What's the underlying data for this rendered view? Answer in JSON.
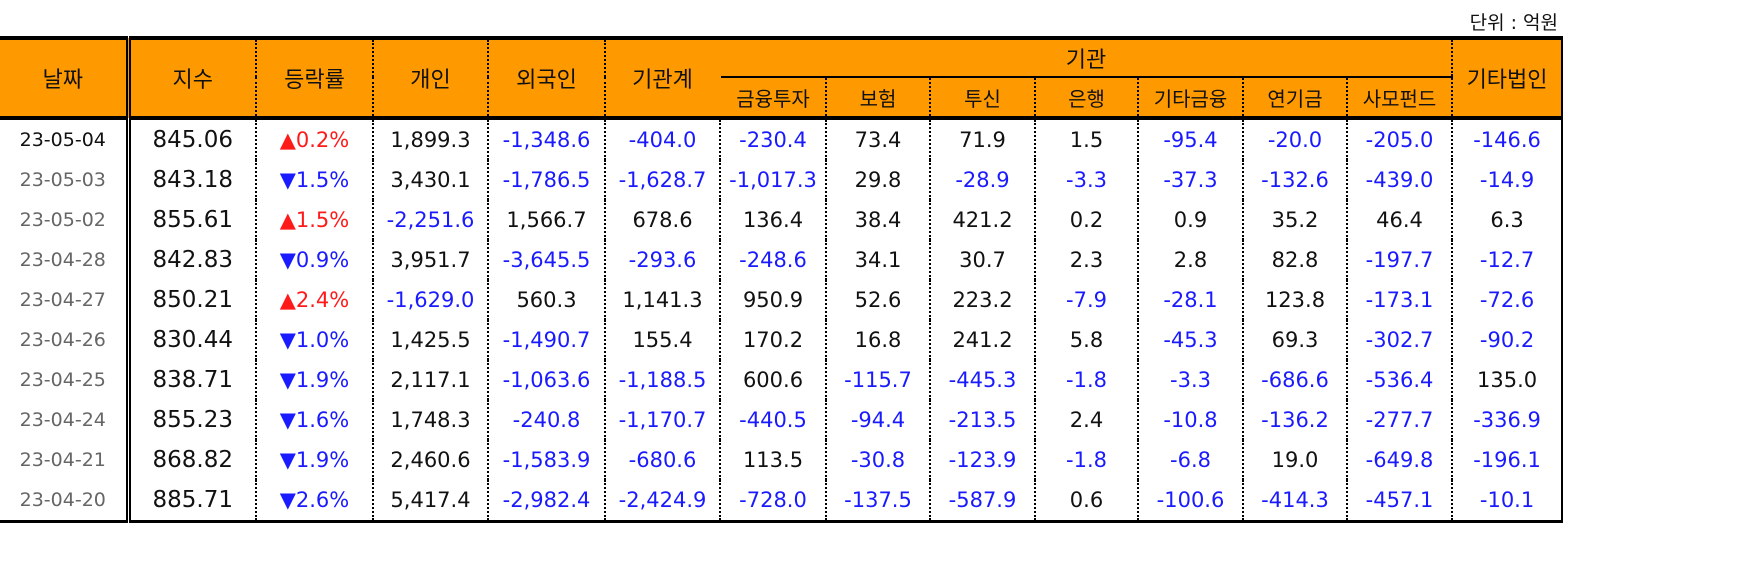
{
  "unit_label": "단위 : 억원",
  "colors": {
    "header_bg": "#ff9900",
    "negative": "#1a1aff",
    "up": "#ff1a1a",
    "down": "#1a1aff"
  },
  "headers": {
    "date": "날짜",
    "index": "지수",
    "rate": "등락률",
    "individual": "개인",
    "foreign": "외국인",
    "inst_total": "기관계",
    "institution": "기관",
    "other_corp": "기타법인",
    "inst_sub": [
      "금융투자",
      "보험",
      "투신",
      "은행",
      "기타금융",
      "연기금",
      "사모펀드"
    ]
  },
  "rows": [
    [
      "23-05-04",
      "845.06",
      "▲",
      "0.2%",
      "1,899.3",
      "-1,348.6",
      "-404.0",
      "-230.4",
      "73.4",
      "71.9",
      "1.5",
      "-95.4",
      "-20.0",
      "-205.0",
      "-146.6"
    ],
    [
      "23-05-03",
      "843.18",
      "▼",
      "1.5%",
      "3,430.1",
      "-1,786.5",
      "-1,628.7",
      "-1,017.3",
      "29.8",
      "-28.9",
      "-3.3",
      "-37.3",
      "-132.6",
      "-439.0",
      "-14.9"
    ],
    [
      "23-05-02",
      "855.61",
      "▲",
      "1.5%",
      "-2,251.6",
      "1,566.7",
      "678.6",
      "136.4",
      "38.4",
      "421.2",
      "0.2",
      "0.9",
      "35.2",
      "46.4",
      "6.3"
    ],
    [
      "23-04-28",
      "842.83",
      "▼",
      "0.9%",
      "3,951.7",
      "-3,645.5",
      "-293.6",
      "-248.6",
      "34.1",
      "30.7",
      "2.3",
      "2.8",
      "82.8",
      "-197.7",
      "-12.7"
    ],
    [
      "23-04-27",
      "850.21",
      "▲",
      "2.4%",
      "-1,629.0",
      "560.3",
      "1,141.3",
      "950.9",
      "52.6",
      "223.2",
      "-7.9",
      "-28.1",
      "123.8",
      "-173.1",
      "-72.6"
    ],
    [
      "23-04-26",
      "830.44",
      "▼",
      "1.0%",
      "1,425.5",
      "-1,490.7",
      "155.4",
      "170.2",
      "16.8",
      "241.2",
      "5.8",
      "-45.3",
      "69.3",
      "-302.7",
      "-90.2"
    ],
    [
      "23-04-25",
      "838.71",
      "▼",
      "1.9%",
      "2,117.1",
      "-1,063.6",
      "-1,188.5",
      "600.6",
      "-115.7",
      "-445.3",
      "-1.8",
      "-3.3",
      "-686.6",
      "-536.4",
      "135.0"
    ],
    [
      "23-04-24",
      "855.23",
      "▼",
      "1.6%",
      "1,748.3",
      "-240.8",
      "-1,170.7",
      "-440.5",
      "-94.4",
      "-213.5",
      "2.4",
      "-10.8",
      "-136.2",
      "-277.7",
      "-336.9"
    ],
    [
      "23-04-21",
      "868.82",
      "▼",
      "1.9%",
      "2,460.6",
      "-1,583.9",
      "-680.6",
      "113.5",
      "-30.8",
      "-123.9",
      "-1.8",
      "-6.8",
      "19.0",
      "-649.8",
      "-196.1"
    ],
    [
      "23-04-20",
      "885.71",
      "▼",
      "2.6%",
      "5,417.4",
      "-2,982.4",
      "-2,424.9",
      "-728.0",
      "-137.5",
      "-587.9",
      "0.6",
      "-100.6",
      "-414.3",
      "-457.1",
      "-10.1"
    ]
  ]
}
